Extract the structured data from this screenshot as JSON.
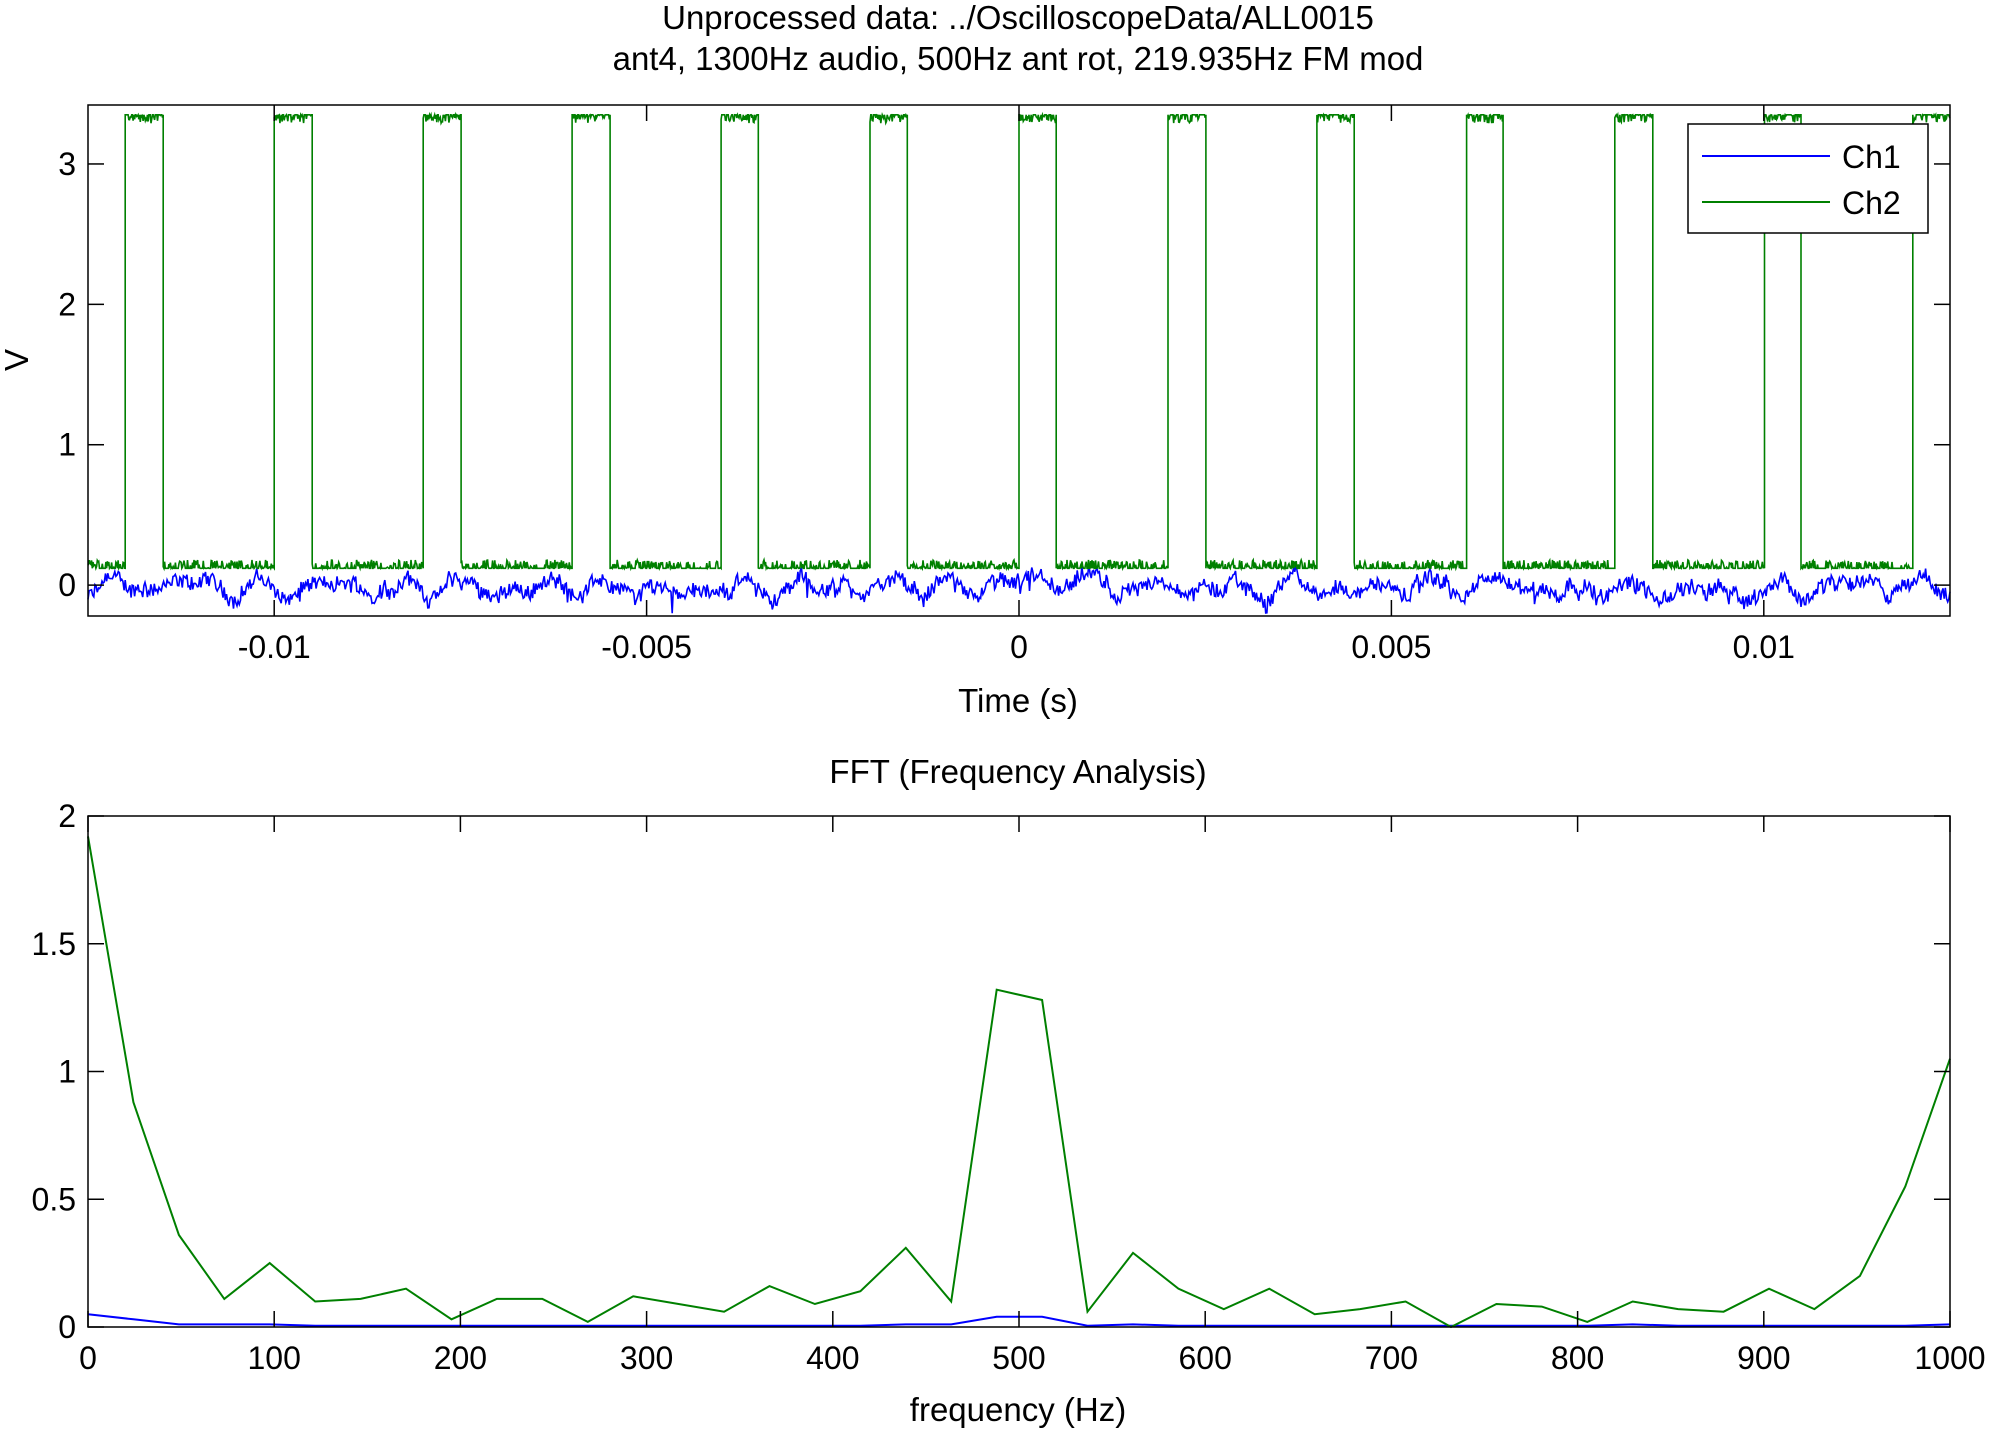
{
  "figure": {
    "title_line1": "Unprocessed data: ../OscilloscopeData/ALL0015",
    "title_line2": "ant4, 1300Hz audio, 500Hz ant rot, 219.935Hz FM mod"
  },
  "colors": {
    "ch1": "#0000ff",
    "ch2": "#008000",
    "axes": "#000000",
    "background": "#ffffff"
  },
  "chart_data": [
    {
      "type": "line",
      "title": "Unprocessed data: ../OscilloscopeData/ALL0015 / ant4, 1300Hz audio, 500Hz ant rot, 219.935Hz FM mod",
      "xlabel": "Time (s)",
      "ylabel": "V",
      "xlim": [
        -0.0125,
        0.0125
      ],
      "ylim": [
        -0.22,
        3.42
      ],
      "xticks": [
        -0.01,
        -0.005,
        0,
        0.005,
        0.01
      ],
      "xtick_labels": [
        "-0.01",
        "-0.005",
        "0",
        "0.005",
        "0.01"
      ],
      "yticks": [
        0,
        1,
        2,
        3
      ],
      "ytick_labels": [
        "0",
        "1",
        "2",
        "3"
      ],
      "grid": false,
      "legend_position": "top-right",
      "series": [
        {
          "name": "Ch1",
          "color": "#0000ff",
          "description_values": "noisy baseline near 0 V",
          "level": 0.0,
          "noise_range": [
            -0.2,
            0.15
          ]
        },
        {
          "name": "Ch2",
          "color": "#008000",
          "low_level": 0.12,
          "high_level": 3.35,
          "pulses": [
            [
              -0.012,
              -0.0115
            ],
            [
              -0.01,
              -0.0095
            ],
            [
              -0.008,
              -0.0075
            ],
            [
              -0.006,
              -0.0055
            ],
            [
              -0.004,
              -0.0035
            ],
            [
              -0.002,
              -0.0015
            ],
            [
              0.0,
              0.0005
            ],
            [
              0.002,
              0.0025
            ],
            [
              0.004,
              0.0045
            ],
            [
              0.006,
              0.0065
            ],
            [
              0.008,
              0.0085
            ],
            [
              0.01,
              0.0105
            ],
            [
              0.012,
              0.0125
            ]
          ]
        }
      ]
    },
    {
      "type": "line",
      "title": "FFT (Frequency Analysis)",
      "xlabel": "frequency (Hz)",
      "ylabel": "",
      "xlim": [
        0,
        1000
      ],
      "ylim": [
        0,
        2
      ],
      "xticks": [
        0,
        100,
        200,
        300,
        400,
        500,
        600,
        700,
        800,
        900,
        1000
      ],
      "xtick_labels": [
        "0",
        "100",
        "200",
        "300",
        "400",
        "500",
        "600",
        "700",
        "800",
        "900",
        "1000"
      ],
      "yticks": [
        0,
        0.5,
        1,
        1.5,
        2
      ],
      "ytick_labels": [
        "0",
        "0.5",
        "1",
        "1.5",
        "2"
      ],
      "grid": false,
      "x": [
        0,
        24.4,
        48.8,
        73.2,
        97.6,
        122,
        146.4,
        170.8,
        195.2,
        219.6,
        244,
        268.4,
        292.8,
        317.2,
        341.6,
        366,
        390.4,
        414.8,
        439.2,
        463.6,
        488,
        512.4,
        536.8,
        561.2,
        585.6,
        610,
        634.4,
        658.8,
        683.2,
        707.6,
        732,
        756.4,
        780.8,
        805.2,
        829.6,
        854,
        878.4,
        902.8,
        927.2,
        951.6,
        976,
        1000
      ],
      "series": [
        {
          "name": "Ch1",
          "color": "#0000ff",
          "values": [
            0.05,
            0.03,
            0.01,
            0.01,
            0.01,
            0.005,
            0.005,
            0.005,
            0.005,
            0.005,
            0.005,
            0.005,
            0.005,
            0.005,
            0.005,
            0.005,
            0.005,
            0.005,
            0.01,
            0.01,
            0.04,
            0.04,
            0.005,
            0.01,
            0.005,
            0.005,
            0.005,
            0.005,
            0.005,
            0.005,
            0.005,
            0.005,
            0.005,
            0.005,
            0.01,
            0.005,
            0.005,
            0.005,
            0.005,
            0.005,
            0.005,
            0.01
          ]
        },
        {
          "name": "Ch2",
          "color": "#008000",
          "values": [
            1.92,
            0.88,
            0.36,
            0.11,
            0.25,
            0.1,
            0.11,
            0.15,
            0.03,
            0.11,
            0.11,
            0.02,
            0.12,
            0.09,
            0.06,
            0.16,
            0.09,
            0.14,
            0.31,
            0.1,
            1.32,
            1.28,
            0.06,
            0.29,
            0.15,
            0.07,
            0.15,
            0.05,
            0.07,
            0.1,
            0.0,
            0.09,
            0.08,
            0.02,
            0.1,
            0.07,
            0.06,
            0.15,
            0.07,
            0.2,
            0.55,
            1.05
          ]
        }
      ]
    }
  ]
}
